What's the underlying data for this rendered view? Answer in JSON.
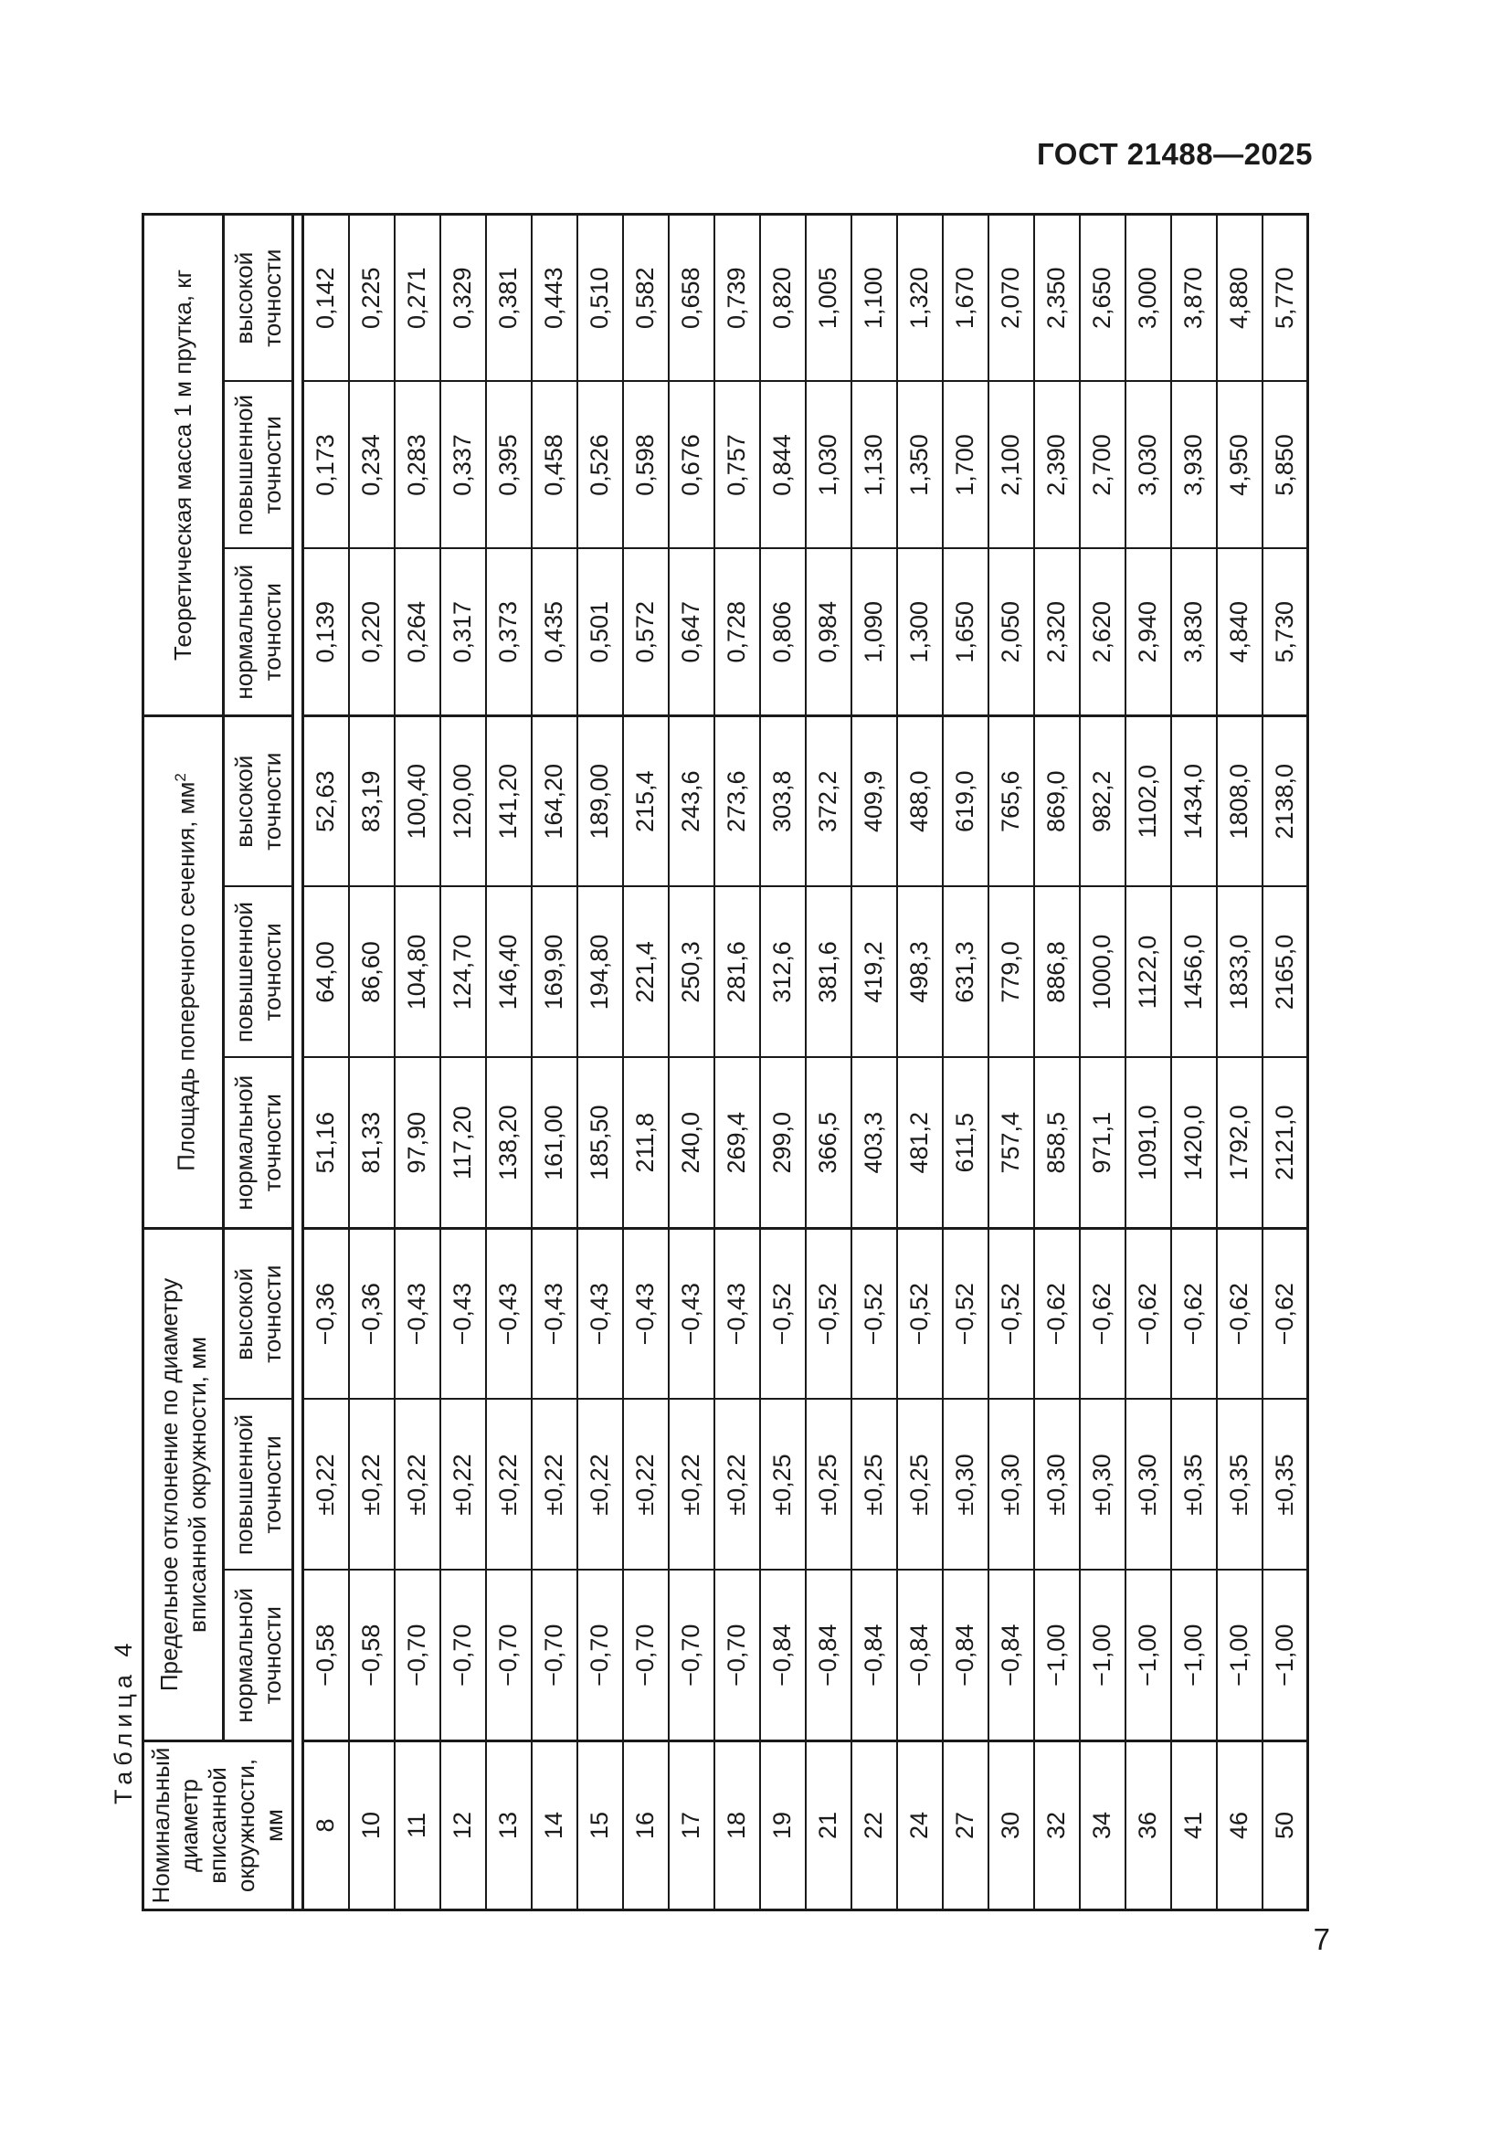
{
  "page": {
    "standard_label": "ГОСТ 21488—2025",
    "page_number": "7"
  },
  "table": {
    "caption": "Таблица 4",
    "headers": {
      "diameter": "Номинальный диаметр вписанной окружности, мм",
      "deviation_group": "Предельное отклонение по диаметру вписанной окружности, мм",
      "area_group": "Площадь поперечного сечения, мм",
      "area_group_sup": "2",
      "mass_group": "Теоретическая масса 1 м прутка, кг"
    },
    "subheaders": [
      "нормальной точности",
      "повышенной точности",
      "высокой точности",
      "нормальной точности",
      "повышенной точности",
      "высокой точности",
      "нормальной точности",
      "повышенной точности",
      "высокой точности"
    ],
    "rows": [
      [
        "8",
        "−0,58",
        "±0,22",
        "−0,36",
        "51,16",
        "64,00",
        "52,63",
        "0,139",
        "0,173",
        "0,142"
      ],
      [
        "10",
        "−0,58",
        "±0,22",
        "−0,36",
        "81,33",
        "86,60",
        "83,19",
        "0,220",
        "0,234",
        "0,225"
      ],
      [
        "11",
        "−0,70",
        "±0,22",
        "−0,43",
        "97,90",
        "104,80",
        "100,40",
        "0,264",
        "0,283",
        "0,271"
      ],
      [
        "12",
        "−0,70",
        "±0,22",
        "−0,43",
        "117,20",
        "124,70",
        "120,00",
        "0,317",
        "0,337",
        "0,329"
      ],
      [
        "13",
        "−0,70",
        "±0,22",
        "−0,43",
        "138,20",
        "146,40",
        "141,20",
        "0,373",
        "0,395",
        "0,381"
      ],
      [
        "14",
        "−0,70",
        "±0,22",
        "−0,43",
        "161,00",
        "169,90",
        "164,20",
        "0,435",
        "0,458",
        "0,443"
      ],
      [
        "15",
        "−0,70",
        "±0,22",
        "−0,43",
        "185,50",
        "194,80",
        "189,00",
        "0,501",
        "0,526",
        "0,510"
      ],
      [
        "16",
        "−0,70",
        "±0,22",
        "−0,43",
        "211,8",
        "221,4",
        "215,4",
        "0,572",
        "0,598",
        "0,582"
      ],
      [
        "17",
        "−0,70",
        "±0,22",
        "−0,43",
        "240,0",
        "250,3",
        "243,6",
        "0,647",
        "0,676",
        "0,658"
      ],
      [
        "18",
        "−0,70",
        "±0,22",
        "−0,43",
        "269,4",
        "281,6",
        "273,6",
        "0,728",
        "0,757",
        "0,739"
      ],
      [
        "19",
        "−0,84",
        "±0,25",
        "−0,52",
        "299,0",
        "312,6",
        "303,8",
        "0,806",
        "0,844",
        "0,820"
      ],
      [
        "21",
        "−0,84",
        "±0,25",
        "−0,52",
        "366,5",
        "381,6",
        "372,2",
        "0,984",
        "1,030",
        "1,005"
      ],
      [
        "22",
        "−0,84",
        "±0,25",
        "−0,52",
        "403,3",
        "419,2",
        "409,9",
        "1,090",
        "1,130",
        "1,100"
      ],
      [
        "24",
        "−0,84",
        "±0,25",
        "−0,52",
        "481,2",
        "498,3",
        "488,0",
        "1,300",
        "1,350",
        "1,320"
      ],
      [
        "27",
        "−0,84",
        "±0,30",
        "−0,52",
        "611,5",
        "631,3",
        "619,0",
        "1,650",
        "1,700",
        "1,670"
      ],
      [
        "30",
        "−0,84",
        "±0,30",
        "−0,52",
        "757,4",
        "779,0",
        "765,6",
        "2,050",
        "2,100",
        "2,070"
      ],
      [
        "32",
        "−1,00",
        "±0,30",
        "−0,62",
        "858,5",
        "886,8",
        "869,0",
        "2,320",
        "2,390",
        "2,350"
      ],
      [
        "34",
        "−1,00",
        "±0,30",
        "−0,62",
        "971,1",
        "1000,0",
        "982,2",
        "2,620",
        "2,700",
        "2,650"
      ],
      [
        "36",
        "−1,00",
        "±0,30",
        "−0,62",
        "1091,0",
        "1122,0",
        "1102,0",
        "2,940",
        "3,030",
        "3,000"
      ],
      [
        "41",
        "−1,00",
        "±0,35",
        "−0,62",
        "1420,0",
        "1456,0",
        "1434,0",
        "3,830",
        "3,930",
        "3,870"
      ],
      [
        "46",
        "−1,00",
        "±0,35",
        "−0,62",
        "1792,0",
        "1833,0",
        "1808,0",
        "4,840",
        "4,950",
        "4,880"
      ],
      [
        "50",
        "−1,00",
        "±0,35",
        "−0,62",
        "2121,0",
        "2165,0",
        "2138,0",
        "5,730",
        "5,850",
        "5,770"
      ]
    ]
  }
}
